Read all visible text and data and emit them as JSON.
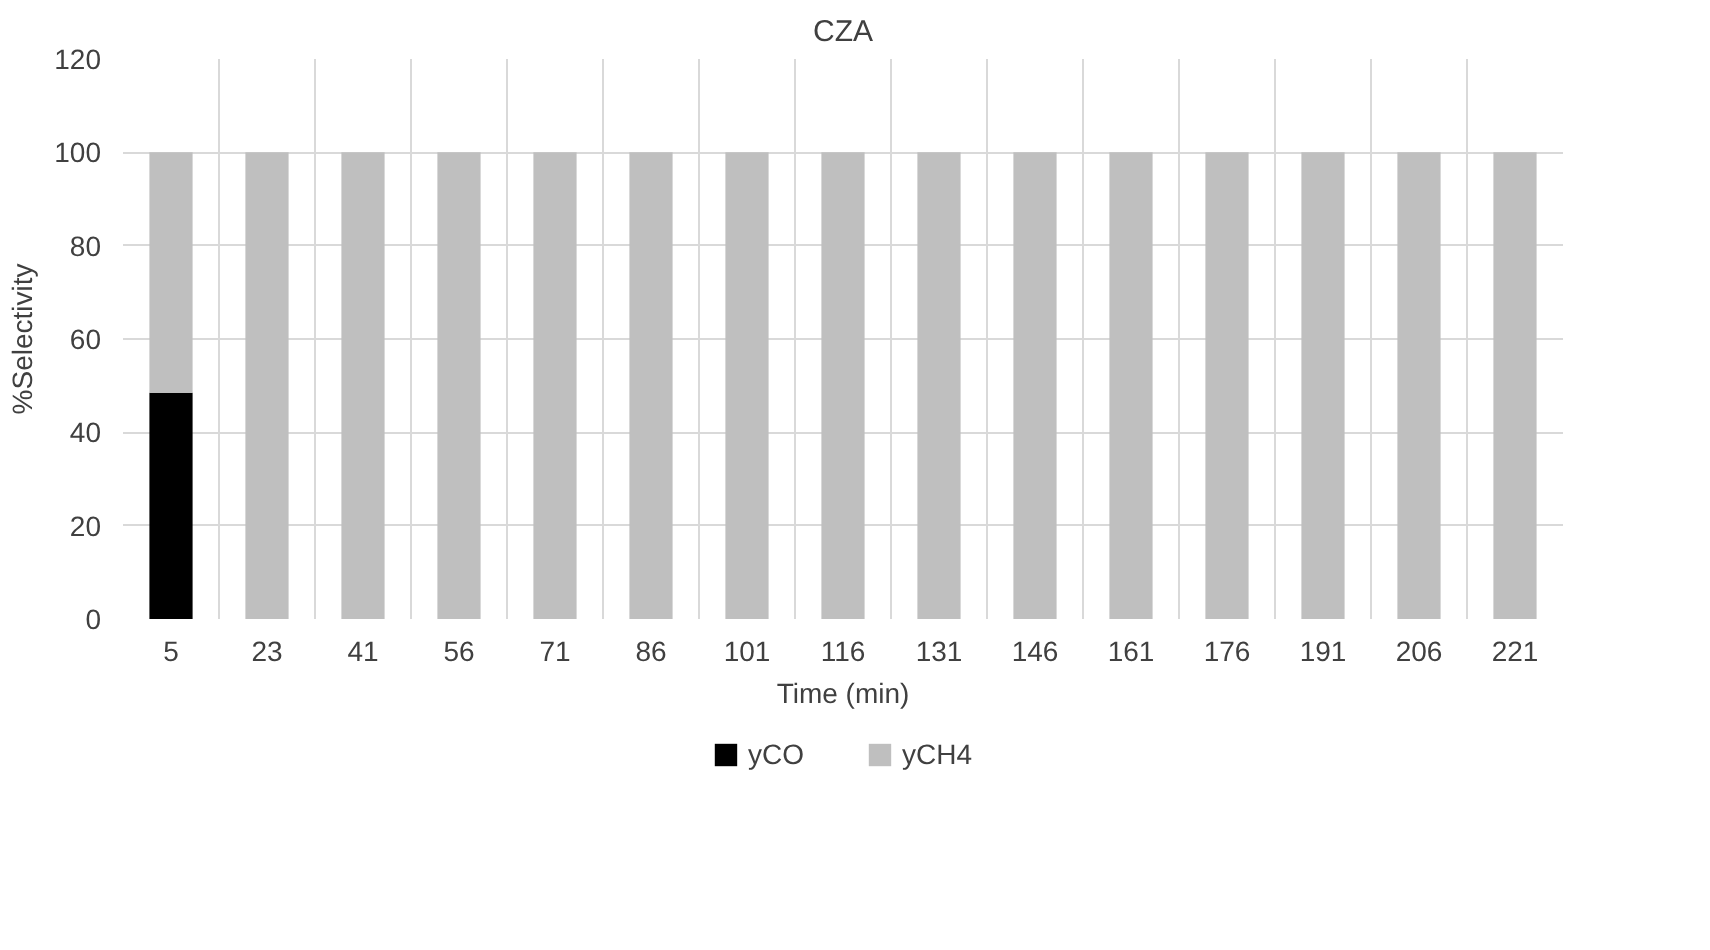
{
  "chart_data": {
    "type": "bar",
    "title": "CZA",
    "xlabel": "Time (min)",
    "ylabel": "%Selectivity",
    "categories": [
      "5",
      "23",
      "41",
      "56",
      "71",
      "86",
      "101",
      "116",
      "131",
      "146",
      "161",
      "176",
      "191",
      "206",
      "221"
    ],
    "series": [
      {
        "name": "yCO",
        "color": "#000000",
        "values": [
          48.5,
          0,
          0,
          0,
          0,
          0,
          0,
          0,
          0,
          0,
          0,
          0,
          0,
          0,
          0
        ]
      },
      {
        "name": "yCH4",
        "color": "#bfbfbf",
        "values": [
          51.5,
          100,
          100,
          100,
          100,
          100,
          100,
          100,
          100,
          100,
          100,
          100,
          100,
          100,
          100
        ]
      }
    ],
    "stacked": true,
    "ylim": [
      0,
      120
    ],
    "yticks": [
      0,
      20,
      40,
      60,
      80,
      100,
      120
    ],
    "grid": true,
    "legend": "bottom"
  }
}
